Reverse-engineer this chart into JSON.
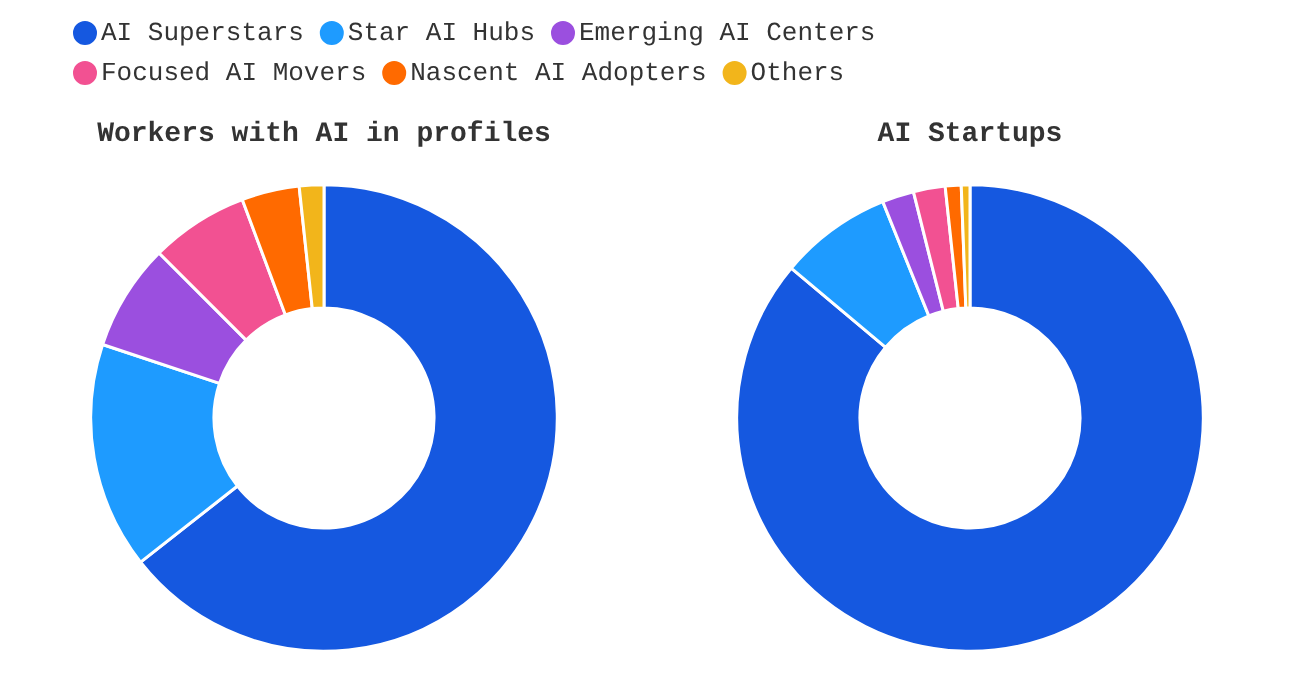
{
  "chart_data": [
    {
      "type": "donut",
      "title": "Workers with AI in profiles",
      "legend": "top",
      "categories": [
        "AI Superstars",
        "Star AI Hubs",
        "Emerging AI Centers",
        "Focused AI Movers",
        "Nascent AI Adopters",
        "Others"
      ],
      "values": [
        64.4,
        15.7,
        7.4,
        6.8,
        4.0,
        1.7
      ],
      "colors": [
        "#1558e0",
        "#1e9bff",
        "#9b4fdf",
        "#f25192",
        "#ff6a00",
        "#f2b51b"
      ]
    },
    {
      "type": "donut",
      "title": "AI Startups",
      "categories": [
        null,
        null,
        null,
        null,
        null,
        null
      ],
      "values": [
        86.1,
        7.8,
        2.2,
        2.2,
        1.1,
        0.6
      ],
      "colors": [
        "#1558e0",
        "#1e9bff",
        "#9b4fdf",
        "#f25192",
        "#ff6a00",
        "#f2b51b"
      ]
    }
  ]
}
